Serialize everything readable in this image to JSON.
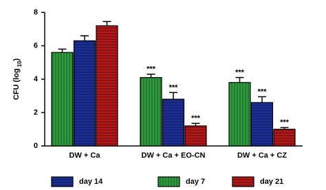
{
  "chart_data": {
    "type": "bar",
    "ylabel": [
      "CFU (log",
      "10",
      ")"
    ],
    "categories": [
      "DW + Ca",
      "DW + Ca + EO-CN",
      "DW + Ca + CZ"
    ],
    "series": [
      {
        "name": "day 7",
        "color": "#2f9e3e",
        "hatch": "vertical",
        "values": [
          5.6,
          4.1,
          3.8
        ],
        "errors": [
          0.2,
          0.2,
          0.3
        ],
        "annotations": [
          null,
          "***",
          "***"
        ]
      },
      {
        "name": "day 14",
        "color": "#1c2f96",
        "hatch": "horizontal",
        "values": [
          6.3,
          2.8,
          2.6
        ],
        "errors": [
          0.3,
          0.4,
          0.35
        ],
        "annotations": [
          null,
          "***",
          "***"
        ]
      },
      {
        "name": "day 21",
        "color": "#b3181b",
        "hatch": "horizontal",
        "values": [
          7.2,
          1.2,
          1.0
        ],
        "errors": [
          0.25,
          0.15,
          0.1
        ],
        "annotations": [
          null,
          "***",
          "***"
        ]
      }
    ],
    "ylim": [
      0,
      8
    ],
    "yticks": [
      0,
      2,
      4,
      6,
      8
    ]
  }
}
